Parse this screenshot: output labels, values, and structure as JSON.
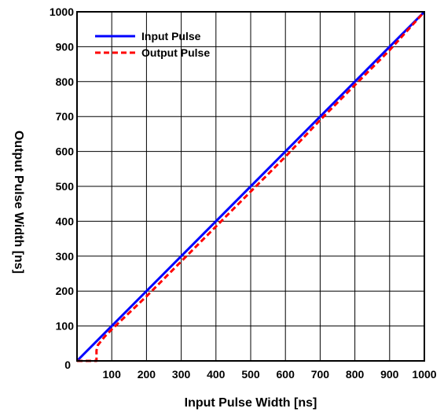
{
  "chart_data": {
    "type": "line",
    "xlabel": "Input Pulse Width [ns]",
    "ylabel": "Output Pulse Width [ns]",
    "xlim": [
      0,
      1000
    ],
    "ylim": [
      0,
      1000
    ],
    "x_ticks": [
      "100",
      "200",
      "300",
      "400",
      "500",
      "600",
      "700",
      "800",
      "900",
      "1000"
    ],
    "y_ticks": [
      "100",
      "200",
      "300",
      "400",
      "500",
      "600",
      "700",
      "800",
      "900",
      "1000"
    ],
    "origin_label": "0",
    "grid": true,
    "legend_position": "top-left",
    "series": [
      {
        "name": "Input Pulse",
        "color": "#0000ff",
        "line_style": "solid",
        "x": [
          0,
          1000
        ],
        "y": [
          0,
          1000
        ]
      },
      {
        "name": "Output Pulse",
        "color": "#ff0000",
        "line_style": "dashed",
        "x": [
          0,
          56,
          56,
          60,
          80,
          100,
          200,
          300,
          400,
          500,
          600,
          700,
          800,
          900,
          1000
        ],
        "y": [
          0,
          0,
          30,
          45,
          70,
          90,
          185,
          285,
          385,
          485,
          585,
          690,
          790,
          890,
          1000
        ]
      }
    ]
  }
}
